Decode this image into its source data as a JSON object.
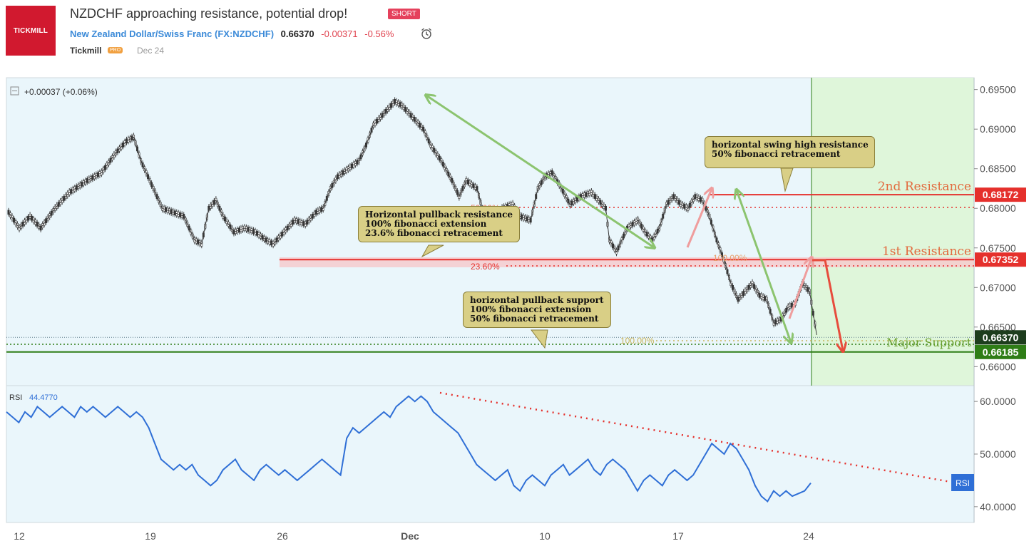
{
  "header": {
    "logo_text": "TICKMILL",
    "title": "NZDCHF approaching resistance, potential drop!",
    "badge": "SHORT",
    "pair_name": "New Zealand Dollar/Swiss Franc (FX:NZDCHF)",
    "price": "0.66370",
    "change": "-0.00371",
    "change_pct": "-0.56%",
    "author": "Tickmill",
    "author_badge": "PRO",
    "date": "Dec 24",
    "brand_color": "#d1192f"
  },
  "annotations": {
    "pullback_resistance": [
      "Horizontal pullback resistance",
      "100% fibonacci extension",
      "23.6% fibonacci retracement"
    ],
    "swing_high": [
      "horizontal swing high resistance",
      "50% fibonacci retracement"
    ],
    "pullback_support": [
      "horizontal pullback support",
      "100% fibonacci extension",
      "50% fibonacci retracement"
    ],
    "first_resistance": "1st Resistance",
    "second_resistance": "2nd Resistance",
    "major_support": "Major Support",
    "fib_50": "50.00%",
    "fib_23": "23.60%",
    "fib_100a": "100.00%",
    "fib_100b": "100.00%"
  },
  "chart_data": [
    {
      "type": "line",
      "title": "NZDCHF",
      "legend_change": "+0.00037 (+0.06%)",
      "x_ticks": [
        "12",
        "19",
        "26",
        "Dec",
        "10",
        "17",
        "24"
      ],
      "y_ticks": [
        "0.69500",
        "0.69000",
        "0.68500",
        "0.68000",
        "0.67500",
        "0.67000",
        "0.66500",
        "0.66000"
      ],
      "ylim": [
        0.6576,
        0.6965
      ],
      "levels": [
        {
          "name": "2nd Resistance",
          "value": 0.68172,
          "label": "0.68172",
          "color": "#e5302c"
        },
        {
          "name": "1st Resistance",
          "value": 0.67352,
          "label": "0.67352",
          "color": "#e5302c"
        },
        {
          "name": "Major Support",
          "value": 0.66185,
          "label": "0.66185",
          "color": "#2e7d16"
        },
        {
          "name": "current",
          "value": 0.6637,
          "label": "0.66370",
          "color": "#1d3d1d"
        }
      ],
      "price_path": [
        [
          0,
          0.6795
        ],
        [
          3,
          0.6775
        ],
        [
          6,
          0.679
        ],
        [
          9,
          0.6775
        ],
        [
          13,
          0.68
        ],
        [
          17,
          0.682
        ],
        [
          22,
          0.6835
        ],
        [
          26,
          0.6845
        ],
        [
          30,
          0.687
        ],
        [
          33,
          0.6885
        ],
        [
          35,
          0.689
        ],
        [
          37,
          0.686
        ],
        [
          40,
          0.683
        ],
        [
          43,
          0.68
        ],
        [
          46,
          0.6795
        ],
        [
          49,
          0.679
        ],
        [
          52,
          0.676
        ],
        [
          54,
          0.6755
        ],
        [
          56,
          0.68
        ],
        [
          58,
          0.681
        ],
        [
          60,
          0.679
        ],
        [
          63,
          0.677
        ],
        [
          66,
          0.6775
        ],
        [
          69,
          0.677
        ],
        [
          72,
          0.676
        ],
        [
          74,
          0.6755
        ],
        [
          76,
          0.6765
        ],
        [
          78,
          0.6775
        ],
        [
          80,
          0.6785
        ],
        [
          83,
          0.678
        ],
        [
          86,
          0.6795
        ],
        [
          88,
          0.68
        ],
        [
          90,
          0.6825
        ],
        [
          92,
          0.684
        ],
        [
          95,
          0.685
        ],
        [
          98,
          0.686
        ],
        [
          100,
          0.688
        ],
        [
          102,
          0.6905
        ],
        [
          105,
          0.692
        ],
        [
          108,
          0.6935
        ],
        [
          110,
          0.693
        ],
        [
          113,
          0.6915
        ],
        [
          116,
          0.69
        ],
        [
          118,
          0.688
        ],
        [
          121,
          0.686
        ],
        [
          124,
          0.6835
        ],
        [
          126,
          0.6815
        ],
        [
          128,
          0.6835
        ],
        [
          131,
          0.6825
        ],
        [
          133,
          0.679
        ],
        [
          136,
          0.6775
        ],
        [
          138,
          0.68
        ],
        [
          141,
          0.6805
        ],
        [
          143,
          0.679
        ],
        [
          146,
          0.6785
        ],
        [
          148,
          0.6825
        ],
        [
          150,
          0.684
        ],
        [
          152,
          0.6845
        ],
        [
          154,
          0.683
        ],
        [
          157,
          0.6805
        ],
        [
          160,
          0.6815
        ],
        [
          163,
          0.682
        ],
        [
          165,
          0.681
        ],
        [
          167,
          0.68
        ],
        [
          168,
          0.676
        ],
        [
          170,
          0.6745
        ],
        [
          173,
          0.6775
        ],
        [
          176,
          0.6785
        ],
        [
          178,
          0.677
        ],
        [
          180,
          0.676
        ],
        [
          182,
          0.6775
        ],
        [
          184,
          0.6805
        ],
        [
          186,
          0.6815
        ],
        [
          188,
          0.6805
        ],
        [
          190,
          0.68
        ],
        [
          192,
          0.6815
        ],
        [
          194,
          0.681
        ],
        [
          196,
          0.679
        ],
        [
          198,
          0.676
        ],
        [
          200,
          0.6735
        ],
        [
          202,
          0.6705
        ],
        [
          204,
          0.6685
        ],
        [
          206,
          0.6695
        ],
        [
          208,
          0.6705
        ],
        [
          210,
          0.669
        ],
        [
          212,
          0.6685
        ],
        [
          214,
          0.6655
        ],
        [
          216,
          0.666
        ],
        [
          218,
          0.6675
        ],
        [
          220,
          0.668
        ],
        [
          222,
          0.6705
        ],
        [
          224,
          0.6695
        ],
        [
          226,
          0.664
        ]
      ],
      "x_range": [
        0,
        270
      ]
    },
    {
      "type": "line",
      "title": "RSI",
      "value_label": "44.4770",
      "y_ticks": [
        "60.0000",
        "50.0000",
        "40.0000"
      ],
      "ylim": [
        37.0,
        63.0
      ],
      "series": [
        {
          "name": "RSI",
          "color": "#2f6fd6",
          "values": [
            58,
            57,
            56,
            58,
            57,
            59,
            58,
            57,
            58,
            59,
            58,
            57,
            59,
            58,
            59,
            58,
            57,
            58,
            59,
            58,
            57,
            58,
            57,
            55,
            52,
            49,
            48,
            47,
            48,
            47,
            48,
            46,
            45,
            44,
            45,
            47,
            48,
            49,
            47,
            46,
            45,
            47,
            48,
            47,
            46,
            47,
            46,
            45,
            46,
            47,
            48,
            49,
            48,
            47,
            46,
            53,
            55,
            54,
            55,
            56,
            57,
            58,
            57,
            59,
            60,
            61,
            60,
            61,
            60,
            58,
            57,
            56,
            55,
            54,
            52,
            50,
            48,
            47,
            46,
            45,
            46,
            47,
            44,
            43,
            45,
            46,
            45,
            44,
            46,
            47,
            48,
            46,
            47,
            48,
            49,
            47,
            46,
            48,
            49,
            48,
            47,
            45,
            43,
            45,
            46,
            45,
            44,
            46,
            47,
            46,
            45,
            46,
            48,
            50,
            52,
            51,
            50,
            52,
            51,
            49,
            47,
            44,
            42,
            41,
            43,
            42,
            43,
            42,
            42.5,
            43,
            44.5
          ]
        }
      ],
      "trendline_label": "RSI"
    }
  ]
}
